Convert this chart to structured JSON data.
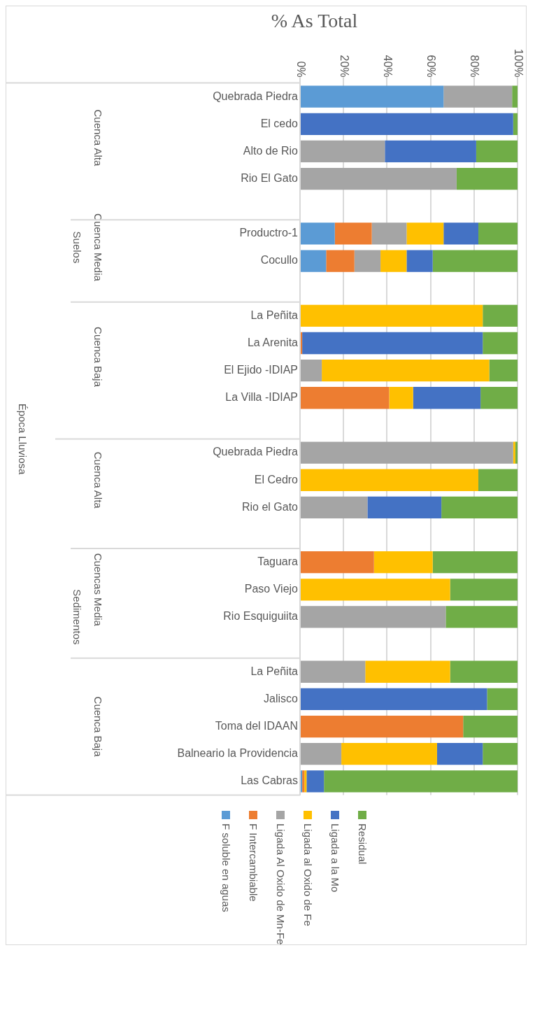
{
  "chart_data": {
    "type": "bar",
    "orientation": "horizontal",
    "stacked": true,
    "title": "% As Total",
    "categories": [
      "Quebrada Piedra",
      "El cedo",
      "Alto de Rio",
      "Rio El Gato",
      null,
      "Productro-1",
      "Cocullo",
      null,
      "La Peñita",
      "La Arenita",
      "El Ejido -IDIAP",
      "La Villa -IDIAP",
      null,
      "Quebrada Piedra",
      "El Cedro",
      "Rio el Gato",
      null,
      "Taguara",
      "Paso Viejo",
      "Rio Esquiguiita",
      null,
      "La Peñita",
      "Jalisco",
      "Toma del IDAAN",
      "Balneario la Providencia",
      "Las Cabras"
    ],
    "series": [
      {
        "name": "F soluble en aguas",
        "color": "#5b9bd5",
        "values": [
          66,
          null,
          null,
          null,
          null,
          16,
          12,
          null,
          null,
          null,
          null,
          null,
          null,
          null,
          null,
          null,
          null,
          null,
          null,
          null,
          null,
          null,
          null,
          null,
          null,
          1
        ]
      },
      {
        "name": "F Intercambiable",
        "color": "#ed7d31",
        "values": [
          null,
          null,
          null,
          null,
          null,
          17,
          13,
          null,
          null,
          1,
          null,
          41,
          null,
          null,
          null,
          null,
          null,
          34,
          null,
          null,
          null,
          null,
          null,
          75,
          null,
          1
        ]
      },
      {
        "name": "Ligada Al Oxido de Mn-Fe",
        "color": "#a5a5a5",
        "values": [
          31.5,
          null,
          39,
          72,
          null,
          16,
          12,
          null,
          null,
          null,
          10,
          null,
          null,
          98,
          null,
          31,
          null,
          null,
          null,
          67,
          null,
          30,
          null,
          null,
          19,
          null
        ]
      },
      {
        "name": "Ligada al Oxido de Fe",
        "color": "#ffc000",
        "values": [
          null,
          null,
          null,
          null,
          null,
          17,
          12,
          null,
          84,
          null,
          77,
          11,
          null,
          1,
          82,
          null,
          null,
          27,
          69,
          null,
          null,
          39,
          null,
          null,
          44,
          1
        ]
      },
      {
        "name": "Ligada a la Mo",
        "color": "#4472c4",
        "values": [
          null,
          98,
          42,
          null,
          null,
          16,
          12,
          null,
          null,
          83,
          null,
          31,
          null,
          null,
          null,
          34,
          null,
          null,
          null,
          null,
          null,
          null,
          86,
          null,
          21,
          8
        ]
      },
      {
        "name": "Residual",
        "color": "#70ad47",
        "values": [
          2.5,
          2,
          19,
          28,
          null,
          18,
          39,
          null,
          16,
          16,
          13,
          17,
          null,
          1,
          18,
          35,
          null,
          39,
          31,
          33,
          null,
          31,
          14,
          25,
          16,
          89
        ]
      }
    ],
    "xlim": [
      0,
      100
    ],
    "xticks": [
      {
        "value": 0,
        "label": "0%"
      },
      {
        "value": 20,
        "label": "20%"
      },
      {
        "value": 40,
        "label": "40%"
      },
      {
        "value": 60,
        "label": "60%"
      },
      {
        "value": 80,
        "label": "80%"
      },
      {
        "value": 100,
        "label": "100%"
      }
    ],
    "grid": "x",
    "legend": "bottom",
    "annotations": [
      "Cuenca Alta",
      "Cuenca Media",
      "Cuenca Baja",
      "Cuenca Alta",
      "Cuencas Media",
      "Cuenca Baja",
      "Suelos",
      "Sedimentos",
      "Época Lluviosa"
    ]
  }
}
